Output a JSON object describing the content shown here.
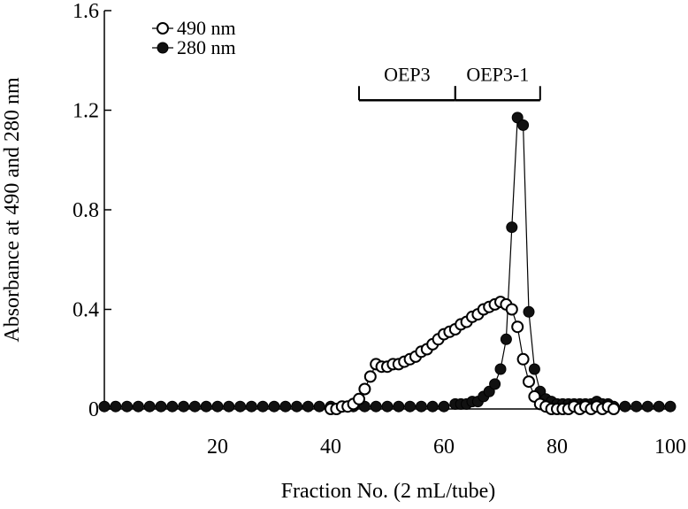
{
  "chart_data": {
    "type": "scatter",
    "xlabel": "Fraction No. (2 mL/tube)",
    "ylabel": "Absorbance at 490 and 280 nm",
    "xlim": [
      0,
      100
    ],
    "ylim": [
      0,
      1.6
    ],
    "xticks": [
      20,
      40,
      60,
      80,
      100
    ],
    "yticks": [
      0,
      0.4,
      0.8,
      1.2,
      1.6
    ],
    "xtick_labels": [
      "20",
      "40",
      "60",
      "80",
      "100"
    ],
    "ytick_labels": [
      "0",
      "0.4",
      "0.8",
      "1.2",
      "1.6"
    ],
    "legend_position": "top-left",
    "grid": false,
    "series": [
      {
        "name": "490 nm",
        "marker": "open-circle",
        "x": [
          40,
          41,
          42,
          43,
          44,
          45,
          46,
          47,
          48,
          49,
          50,
          51,
          52,
          53,
          54,
          55,
          56,
          57,
          58,
          59,
          60,
          61,
          62,
          63,
          64,
          65,
          66,
          67,
          68,
          69,
          70,
          71,
          72,
          73,
          74,
          75,
          76,
          77,
          78,
          79,
          80,
          81,
          82,
          83,
          84,
          85,
          86,
          87,
          88,
          89,
          90
        ],
        "y": [
          0.0,
          0.0,
          0.01,
          0.01,
          0.02,
          0.04,
          0.08,
          0.13,
          0.18,
          0.17,
          0.17,
          0.18,
          0.18,
          0.19,
          0.2,
          0.21,
          0.23,
          0.24,
          0.26,
          0.28,
          0.3,
          0.31,
          0.32,
          0.34,
          0.35,
          0.37,
          0.38,
          0.4,
          0.41,
          0.42,
          0.43,
          0.42,
          0.4,
          0.33,
          0.2,
          0.11,
          0.05,
          0.02,
          0.01,
          0.0,
          0.0,
          0.0,
          0.0,
          0.01,
          0.0,
          0.01,
          0.0,
          0.01,
          0.0,
          0.01,
          0.0
        ]
      },
      {
        "name": "280 nm",
        "marker": "filled-circle",
        "x": [
          0,
          2,
          4,
          6,
          8,
          10,
          12,
          14,
          16,
          18,
          20,
          22,
          24,
          26,
          28,
          30,
          32,
          34,
          36,
          38,
          40,
          42,
          44,
          46,
          48,
          50,
          52,
          54,
          56,
          58,
          60,
          62,
          63,
          64,
          65,
          66,
          67,
          68,
          69,
          70,
          71,
          72,
          73,
          74,
          75,
          76,
          77,
          78,
          79,
          80,
          81,
          82,
          83,
          84,
          85,
          86,
          87,
          88,
          89,
          90,
          92,
          94,
          96,
          98,
          100
        ],
        "y": [
          0.01,
          0.01,
          0.01,
          0.01,
          0.01,
          0.01,
          0.01,
          0.01,
          0.01,
          0.01,
          0.01,
          0.01,
          0.01,
          0.01,
          0.01,
          0.01,
          0.01,
          0.01,
          0.01,
          0.01,
          0.01,
          0.01,
          0.01,
          0.01,
          0.01,
          0.01,
          0.01,
          0.01,
          0.01,
          0.01,
          0.01,
          0.02,
          0.02,
          0.02,
          0.03,
          0.03,
          0.05,
          0.07,
          0.1,
          0.16,
          0.28,
          0.73,
          1.17,
          1.14,
          0.39,
          0.16,
          0.07,
          0.04,
          0.03,
          0.02,
          0.02,
          0.02,
          0.02,
          0.02,
          0.02,
          0.02,
          0.03,
          0.02,
          0.02,
          0.01,
          0.01,
          0.01,
          0.01,
          0.01,
          0.01
        ]
      }
    ],
    "annotations": [
      {
        "label": "OEP3",
        "x_start": 45,
        "x_end": 62,
        "y": 1.24
      },
      {
        "label": "OEP3-1",
        "x_start": 62,
        "x_end": 77,
        "y": 1.24
      }
    ]
  }
}
